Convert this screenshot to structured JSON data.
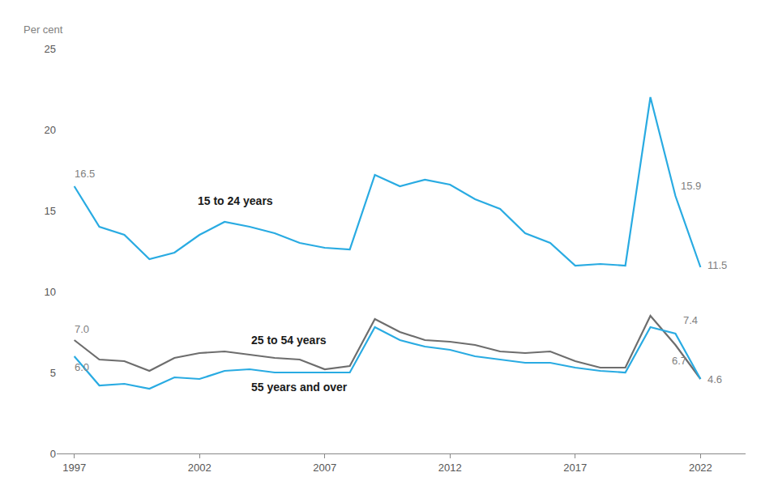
{
  "chart_data": {
    "type": "line",
    "ylabel": "Per cent",
    "x": [
      1997,
      1998,
      1999,
      2000,
      2001,
      2002,
      2003,
      2004,
      2005,
      2006,
      2007,
      2008,
      2009,
      2010,
      2011,
      2012,
      2013,
      2014,
      2015,
      2016,
      2017,
      2018,
      2019,
      2020,
      2021,
      2022
    ],
    "series": [
      {
        "name": "15 to 24 years",
        "color": "#29ABE2",
        "values": [
          16.5,
          14.0,
          13.5,
          12.0,
          12.4,
          13.5,
          14.3,
          14.0,
          13.6,
          13.0,
          12.7,
          12.6,
          17.2,
          16.5,
          16.9,
          16.6,
          15.7,
          15.1,
          13.6,
          13.0,
          11.6,
          11.7,
          11.6,
          22.0,
          15.9,
          11.5
        ]
      },
      {
        "name": "25 to 54 years",
        "color": "#6D6D6D",
        "values": [
          7.0,
          5.8,
          5.7,
          5.1,
          5.9,
          6.2,
          6.3,
          6.1,
          5.9,
          5.8,
          5.2,
          5.4,
          8.3,
          7.5,
          7.0,
          6.9,
          6.7,
          6.3,
          6.2,
          6.3,
          5.7,
          5.3,
          5.3,
          8.5,
          6.7,
          4.6
        ]
      },
      {
        "name": "55 years and over",
        "color": "#29ABE2",
        "values": [
          6.0,
          4.2,
          4.3,
          4.0,
          4.7,
          4.6,
          5.1,
          5.2,
          5.0,
          5.0,
          5.0,
          5.0,
          7.8,
          7.0,
          6.6,
          6.4,
          6.0,
          5.8,
          5.6,
          5.6,
          5.3,
          5.1,
          5.0,
          7.8,
          7.4,
          4.6
        ]
      }
    ],
    "annotations": [
      {
        "text": "16.5",
        "x": 1997,
        "y": 16.5
      },
      {
        "text": "7.0",
        "x": 1997,
        "y": 7.0
      },
      {
        "text": "6.0",
        "x": 1997,
        "y": 6.0
      },
      {
        "text": "15.9",
        "x": 2021,
        "y": 15.9
      },
      {
        "text": "11.5",
        "x": 2022,
        "y": 11.5
      },
      {
        "text": "7.4",
        "x": 2021,
        "y": 7.4
      },
      {
        "text": "6.7",
        "x": 2021,
        "y": 6.7
      },
      {
        "text": "4.6",
        "x": 2022,
        "y": 4.6
      }
    ],
    "xlim": [
      1996.3,
      2023.8
    ],
    "xticks": [
      1997,
      2002,
      2007,
      2012,
      2017,
      2022
    ],
    "ylim": [
      0,
      25
    ],
    "yticks": [
      0,
      5,
      10,
      15,
      20,
      25
    ],
    "grid": false
  }
}
